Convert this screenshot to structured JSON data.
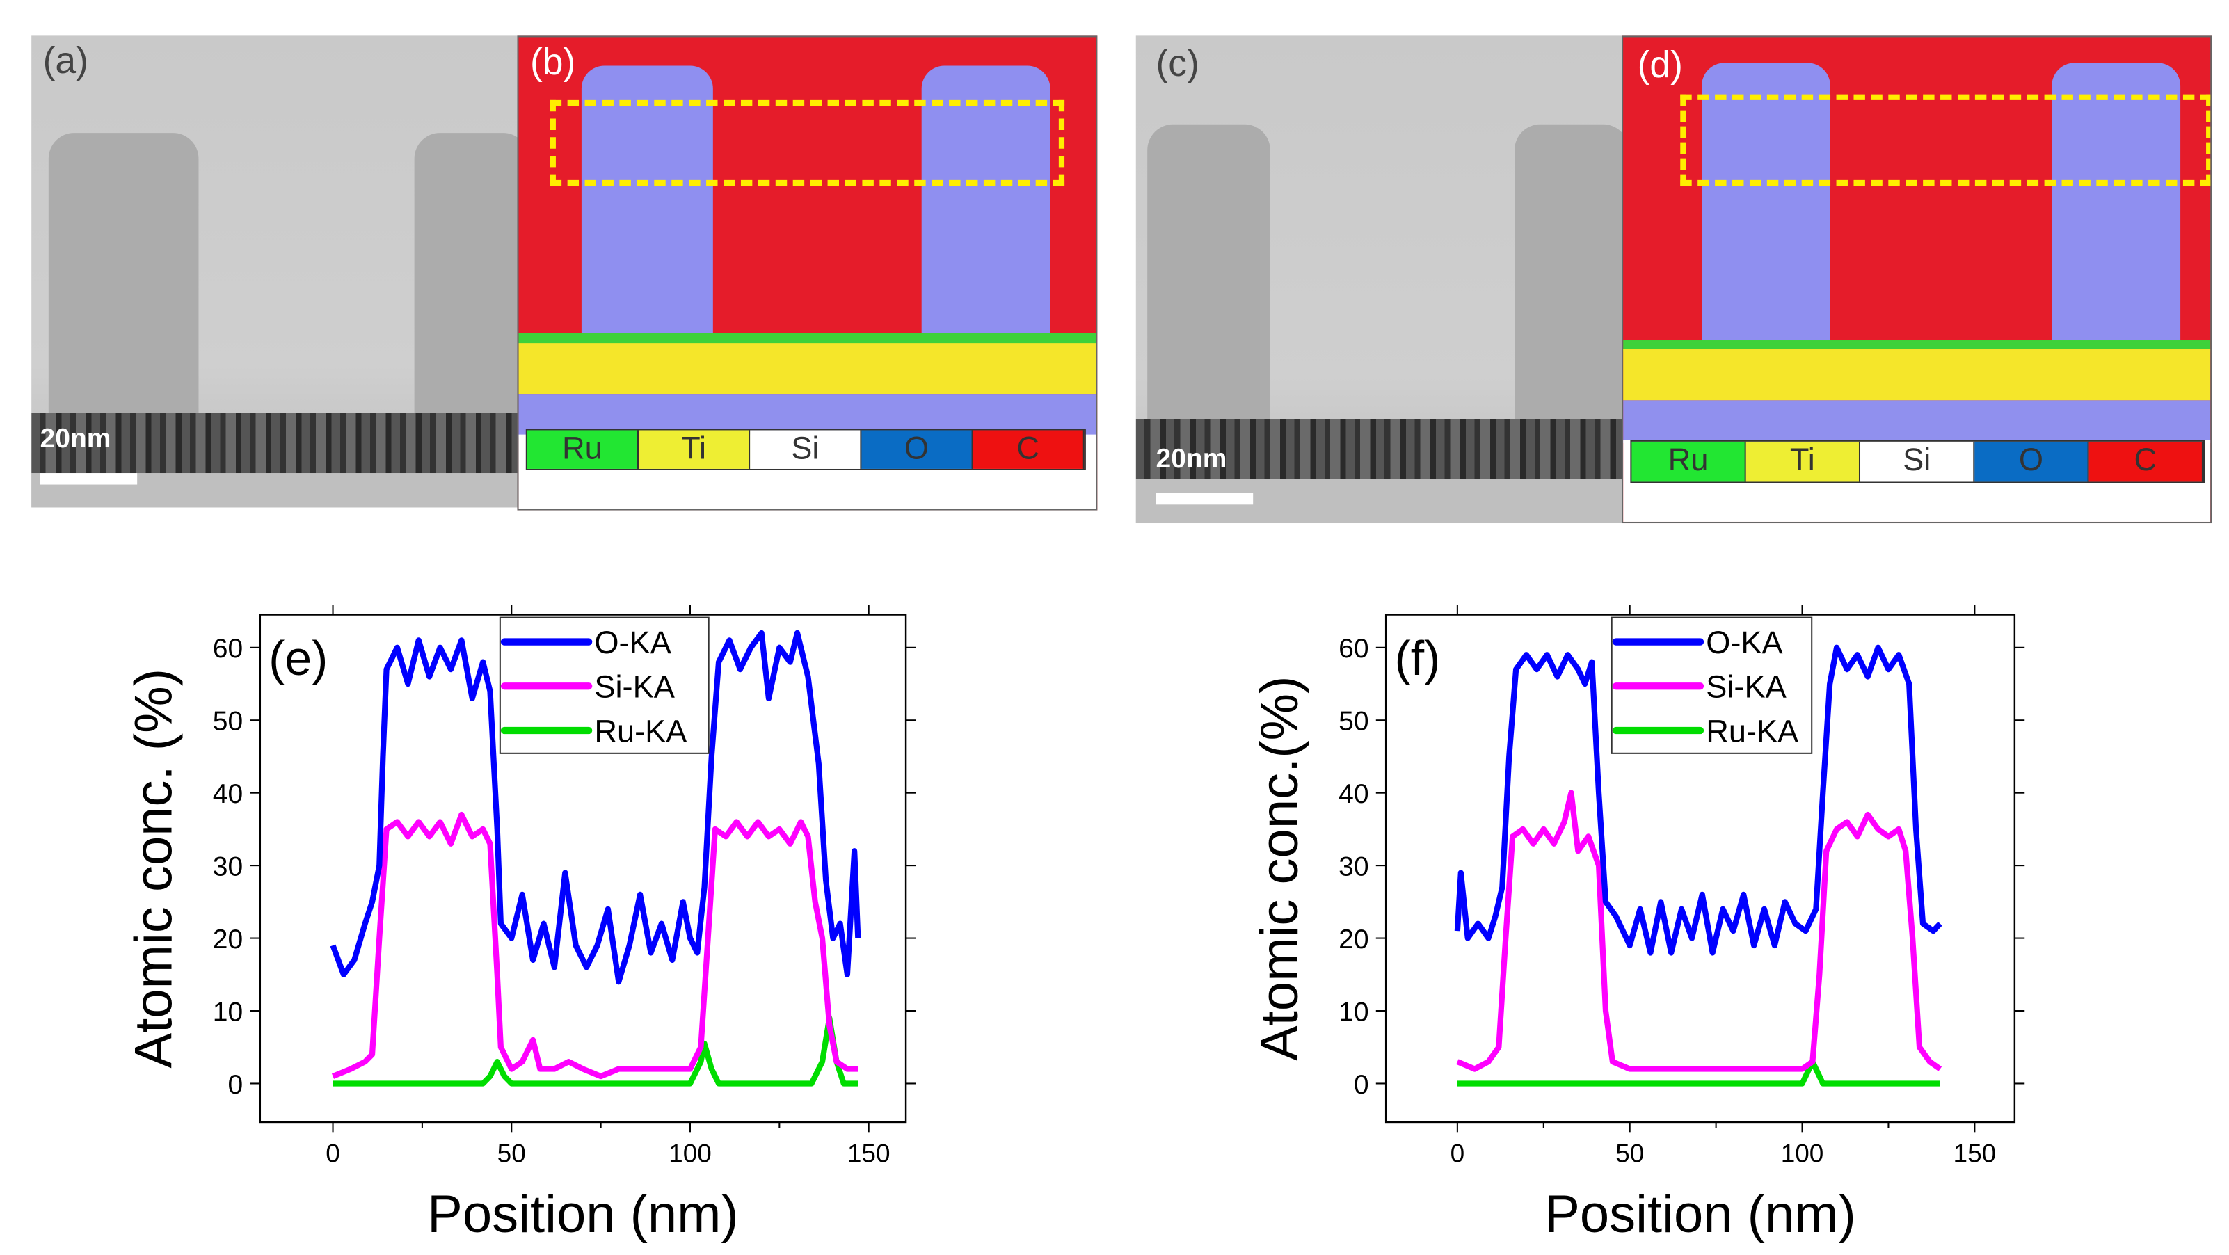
{
  "panels": {
    "a": {
      "label": "(a)",
      "scale": "20nm"
    },
    "b": {
      "label": "(b)"
    },
    "c": {
      "label": "(c)",
      "scale": "20nm"
    },
    "d": {
      "label": "(d)"
    },
    "eds_legend": [
      {
        "el": "Ru",
        "color": "#22e632"
      },
      {
        "el": "Ti",
        "color": "#eeee33"
      },
      {
        "el": "Si",
        "color": "#ffffff"
      },
      {
        "el": "O",
        "color": "#0a6cc4"
      },
      {
        "el": "C",
        "color": "#ee1111"
      }
    ]
  },
  "chart_data": [
    {
      "panel": "(e)",
      "type": "line",
      "xlabel": "Position (nm)",
      "ylabel": "Atomic conc. (%)",
      "xlim": [
        -20,
        160
      ],
      "ylim": [
        -5,
        65
      ],
      "xticks": [
        0,
        50,
        100,
        150
      ],
      "yticks": [
        0,
        10,
        20,
        30,
        40,
        50,
        60
      ],
      "legend": "top-center",
      "series": [
        {
          "name": "O-KA",
          "color": "#0000ff",
          "points": [
            [
              0,
              19
            ],
            [
              3,
              15
            ],
            [
              6,
              17
            ],
            [
              9,
              22
            ],
            [
              11,
              25
            ],
            [
              13,
              30
            ],
            [
              14,
              45
            ],
            [
              15,
              57
            ],
            [
              18,
              60
            ],
            [
              21,
              55
            ],
            [
              24,
              61
            ],
            [
              27,
              56
            ],
            [
              30,
              60
            ],
            [
              33,
              57
            ],
            [
              36,
              61
            ],
            [
              39,
              53
            ],
            [
              42,
              58
            ],
            [
              44,
              54
            ],
            [
              46,
              35
            ],
            [
              47,
              22
            ],
            [
              50,
              20
            ],
            [
              53,
              26
            ],
            [
              56,
              17
            ],
            [
              59,
              22
            ],
            [
              62,
              16
            ],
            [
              65,
              29
            ],
            [
              68,
              19
            ],
            [
              71,
              16
            ],
            [
              74,
              19
            ],
            [
              77,
              24
            ],
            [
              80,
              14
            ],
            [
              83,
              19
            ],
            [
              86,
              26
            ],
            [
              89,
              18
            ],
            [
              92,
              22
            ],
            [
              95,
              17
            ],
            [
              98,
              25
            ],
            [
              100,
              20
            ],
            [
              102,
              18
            ],
            [
              104,
              27
            ],
            [
              106,
              45
            ],
            [
              108,
              58
            ],
            [
              111,
              61
            ],
            [
              114,
              57
            ],
            [
              117,
              60
            ],
            [
              120,
              62
            ],
            [
              122,
              53
            ],
            [
              125,
              60
            ],
            [
              128,
              58
            ],
            [
              130,
              62
            ],
            [
              133,
              56
            ],
            [
              136,
              44
            ],
            [
              138,
              28
            ],
            [
              140,
              20
            ],
            [
              142,
              22
            ],
            [
              144,
              15
            ],
            [
              146,
              32
            ],
            [
              147,
              20
            ]
          ]
        },
        {
          "name": "Si-KA",
          "color": "#ff00ff",
          "points": [
            [
              0,
              1
            ],
            [
              5,
              2
            ],
            [
              9,
              3
            ],
            [
              11,
              4
            ],
            [
              13,
              20
            ],
            [
              15,
              35
            ],
            [
              18,
              36
            ],
            [
              21,
              34
            ],
            [
              24,
              36
            ],
            [
              27,
              34
            ],
            [
              30,
              36
            ],
            [
              33,
              33
            ],
            [
              36,
              37
            ],
            [
              39,
              34
            ],
            [
              42,
              35
            ],
            [
              44,
              33
            ],
            [
              46,
              15
            ],
            [
              47,
              5
            ],
            [
              50,
              2
            ],
            [
              53,
              3
            ],
            [
              56,
              6
            ],
            [
              58,
              2
            ],
            [
              62,
              2
            ],
            [
              66,
              3
            ],
            [
              70,
              2
            ],
            [
              75,
              1
            ],
            [
              80,
              2
            ],
            [
              85,
              2
            ],
            [
              90,
              2
            ],
            [
              95,
              2
            ],
            [
              100,
              2
            ],
            [
              103,
              5
            ],
            [
              105,
              20
            ],
            [
              107,
              35
            ],
            [
              110,
              34
            ],
            [
              113,
              36
            ],
            [
              116,
              34
            ],
            [
              119,
              36
            ],
            [
              122,
              34
            ],
            [
              125,
              35
            ],
            [
              128,
              33
            ],
            [
              131,
              36
            ],
            [
              133,
              34
            ],
            [
              135,
              25
            ],
            [
              137,
              20
            ],
            [
              139,
              8
            ],
            [
              141,
              3
            ],
            [
              144,
              2
            ],
            [
              147,
              2
            ]
          ]
        },
        {
          "name": "Ru-KA",
          "color": "#00dd00",
          "points": [
            [
              0,
              0
            ],
            [
              42,
              0
            ],
            [
              44,
              1
            ],
            [
              46,
              3
            ],
            [
              48,
              1
            ],
            [
              50,
              0
            ],
            [
              100,
              0
            ],
            [
              103,
              3
            ],
            [
              104,
              5.5
            ],
            [
              106,
              2
            ],
            [
              108,
              0
            ],
            [
              134,
              0
            ],
            [
              137,
              3
            ],
            [
              139,
              9
            ],
            [
              141,
              3
            ],
            [
              143,
              0
            ],
            [
              147,
              0
            ]
          ]
        }
      ]
    },
    {
      "panel": "(f)",
      "type": "line",
      "xlabel": "Position (nm)",
      "ylabel": "Atomic conc.(%)",
      "xlim": [
        -20,
        160
      ],
      "ylim": [
        -5,
        65
      ],
      "xticks": [
        0,
        50,
        100,
        150
      ],
      "yticks": [
        0,
        10,
        20,
        30,
        40,
        50,
        60
      ],
      "legend": "top-center",
      "series": [
        {
          "name": "O-KA",
          "color": "#0000ff",
          "points": [
            [
              0,
              21
            ],
            [
              1,
              29
            ],
            [
              3,
              20
            ],
            [
              6,
              22
            ],
            [
              9,
              20
            ],
            [
              11,
              23
            ],
            [
              13,
              27
            ],
            [
              15,
              45
            ],
            [
              17,
              57
            ],
            [
              20,
              59
            ],
            [
              23,
              57
            ],
            [
              26,
              59
            ],
            [
              29,
              56
            ],
            [
              32,
              59
            ],
            [
              35,
              57
            ],
            [
              37,
              55
            ],
            [
              39,
              58
            ],
            [
              41,
              40
            ],
            [
              43,
              25
            ],
            [
              46,
              23
            ],
            [
              50,
              19
            ],
            [
              53,
              24
            ],
            [
              56,
              18
            ],
            [
              59,
              25
            ],
            [
              62,
              18
            ],
            [
              65,
              24
            ],
            [
              68,
              20
            ],
            [
              71,
              26
            ],
            [
              74,
              18
            ],
            [
              77,
              24
            ],
            [
              80,
              21
            ],
            [
              83,
              26
            ],
            [
              86,
              19
            ],
            [
              89,
              24
            ],
            [
              92,
              19
            ],
            [
              95,
              25
            ],
            [
              98,
              22
            ],
            [
              101,
              21
            ],
            [
              104,
              24
            ],
            [
              106,
              40
            ],
            [
              108,
              55
            ],
            [
              110,
              60
            ],
            [
              113,
              57
            ],
            [
              116,
              59
            ],
            [
              119,
              56
            ],
            [
              122,
              60
            ],
            [
              125,
              57
            ],
            [
              128,
              59
            ],
            [
              131,
              55
            ],
            [
              133,
              35
            ],
            [
              135,
              22
            ],
            [
              138,
              21
            ],
            [
              140,
              22
            ]
          ]
        },
        {
          "name": "Si-KA",
          "color": "#ff00ff",
          "points": [
            [
              0,
              3
            ],
            [
              5,
              2
            ],
            [
              9,
              3
            ],
            [
              12,
              5
            ],
            [
              14,
              20
            ],
            [
              16,
              34
            ],
            [
              19,
              35
            ],
            [
              22,
              33
            ],
            [
              25,
              35
            ],
            [
              28,
              33
            ],
            [
              31,
              36
            ],
            [
              33,
              40
            ],
            [
              35,
              32
            ],
            [
              38,
              34
            ],
            [
              41,
              30
            ],
            [
              43,
              10
            ],
            [
              45,
              3
            ],
            [
              50,
              2
            ],
            [
              60,
              2
            ],
            [
              70,
              2
            ],
            [
              80,
              2
            ],
            [
              90,
              2
            ],
            [
              100,
              2
            ],
            [
              103,
              3
            ],
            [
              105,
              15
            ],
            [
              107,
              32
            ],
            [
              110,
              35
            ],
            [
              113,
              36
            ],
            [
              116,
              34
            ],
            [
              119,
              37
            ],
            [
              122,
              35
            ],
            [
              125,
              34
            ],
            [
              128,
              35
            ],
            [
              130,
              32
            ],
            [
              132,
              20
            ],
            [
              134,
              5
            ],
            [
              137,
              3
            ],
            [
              140,
              2
            ]
          ]
        },
        {
          "name": "Ru-KA",
          "color": "#00dd00",
          "points": [
            [
              0,
              0
            ],
            [
              100,
              0
            ],
            [
              102,
              2
            ],
            [
              103,
              3
            ],
            [
              104,
              2
            ],
            [
              106,
              0
            ],
            [
              140,
              0
            ]
          ]
        }
      ]
    }
  ]
}
